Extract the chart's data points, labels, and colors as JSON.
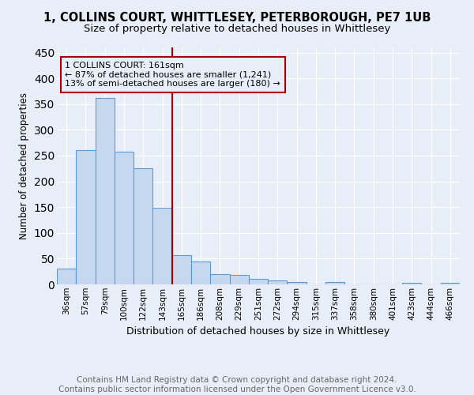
{
  "title": "1, COLLINS COURT, WHITTLESEY, PETERBOROUGH, PE7 1UB",
  "subtitle": "Size of property relative to detached houses in Whittlesey",
  "xlabel": "Distribution of detached houses by size in Whittlesey",
  "ylabel": "Number of detached properties",
  "bar_labels": [
    "36sqm",
    "57sqm",
    "79sqm",
    "100sqm",
    "122sqm",
    "143sqm",
    "165sqm",
    "186sqm",
    "208sqm",
    "229sqm",
    "251sqm",
    "272sqm",
    "294sqm",
    "315sqm",
    "337sqm",
    "358sqm",
    "380sqm",
    "401sqm",
    "423sqm",
    "444sqm",
    "466sqm"
  ],
  "bar_values": [
    30,
    260,
    362,
    257,
    225,
    148,
    57,
    45,
    20,
    18,
    10,
    7,
    5,
    0,
    4,
    0,
    0,
    0,
    3,
    0,
    3
  ],
  "bar_color": "#c5d8f0",
  "bar_edge_color": "#5b9bd5",
  "vline_color": "#aa0000",
  "annotation_text": "1 COLLINS COURT: 161sqm\n← 87% of detached houses are smaller (1,241)\n13% of semi-detached houses are larger (180) →",
  "ylim": [
    0,
    460
  ],
  "yticks": [
    0,
    50,
    100,
    150,
    200,
    250,
    300,
    350,
    400,
    450
  ],
  "footer": "Contains HM Land Registry data © Crown copyright and database right 2024.\nContains public sector information licensed under the Open Government Licence v3.0.",
  "background_color": "#e8eef8",
  "grid_color": "#ffffff",
  "title_fontsize": 10.5,
  "subtitle_fontsize": 9.5,
  "xlabel_fontsize": 9,
  "ylabel_fontsize": 8.5,
  "tick_fontsize": 7.5,
  "footer_fontsize": 7.5,
  "ann_fontsize": 8
}
